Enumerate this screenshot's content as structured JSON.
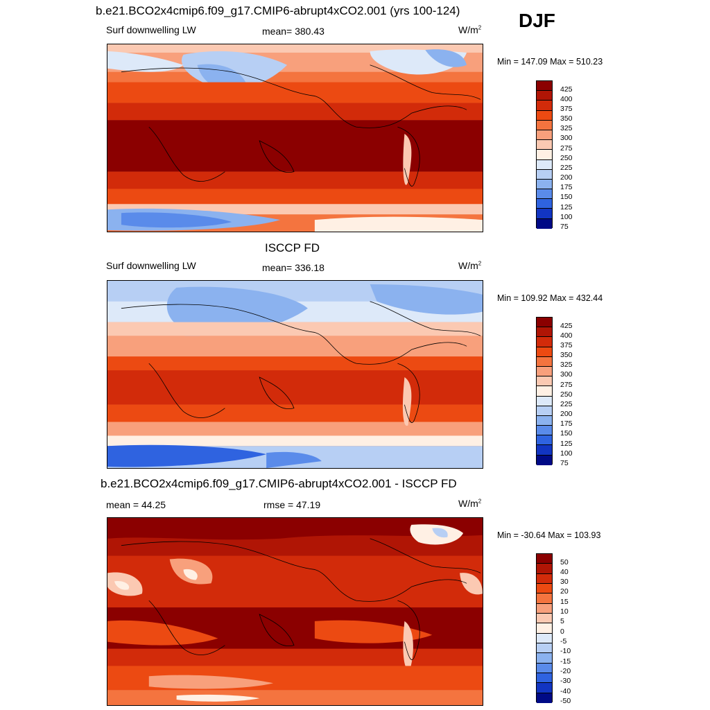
{
  "season": "DJF",
  "units": "W/m",
  "units_exp": "2",
  "panels": [
    {
      "title": "b.e21.BCO2x4cmip6.f09_g17.CMIP6-abrupt4xCO2.001 (yrs 100-124)",
      "variable": "Surf downwelling LW",
      "stat1": "mean= 380.43",
      "stat2": "",
      "minmax": "Min = 147.09 Max = 510.23"
    },
    {
      "title": "ISCCP FD",
      "variable": "Surf downwelling LW",
      "stat1": "mean= 336.18",
      "stat2": "",
      "minmax": "Min = 109.92 Max = 432.44"
    },
    {
      "title": "b.e21.BCO2x4cmip6.f09_g17.CMIP6-abrupt4xCO2.001 - ISCCP FD",
      "variable": "",
      "stat1": "mean =  44.25",
      "stat2": "rmse =  47.19",
      "minmax": "Min = -30.64 Max = 103.93"
    }
  ],
  "chart_data": [
    {
      "type": "heatmap",
      "title": "b.e21.BCO2x4cmip6.f09_g17.CMIP6-abrupt4xCO2.001 (yrs 100-124)",
      "variable": "Surf downwelling LW",
      "mean": 380.43,
      "min": 147.09,
      "max": 510.23,
      "colorbar_levels": [
        425,
        400,
        375,
        350,
        325,
        300,
        275,
        250,
        225,
        200,
        175,
        150,
        125,
        100,
        75
      ]
    },
    {
      "type": "heatmap",
      "title": "ISCCP FD",
      "variable": "Surf downwelling LW",
      "mean": 336.18,
      "min": 109.92,
      "max": 432.44,
      "colorbar_levels": [
        425,
        400,
        375,
        350,
        325,
        300,
        275,
        250,
        225,
        200,
        175,
        150,
        125,
        100,
        75
      ]
    },
    {
      "type": "heatmap",
      "title": "b.e21.BCO2x4cmip6.f09_g17.CMIP6-abrupt4xCO2.001 - ISCCP FD",
      "mean": 44.25,
      "rmse": 47.19,
      "min": -30.64,
      "max": 103.93,
      "colorbar_levels": [
        50,
        40,
        30,
        20,
        15,
        10,
        5,
        0,
        -5,
        -10,
        -15,
        -20,
        -30,
        -40,
        -50
      ]
    }
  ],
  "colors": [
    "#8b0000",
    "#b01505",
    "#d22b0a",
    "#ec4a12",
    "#f4743f",
    "#f8a07c",
    "#fbc9b2",
    "#fff0e4",
    "#dde9f9",
    "#b7cff4",
    "#8bb2ef",
    "#5a8bea",
    "#2f63e0",
    "#1235c2",
    "#000a86"
  ]
}
